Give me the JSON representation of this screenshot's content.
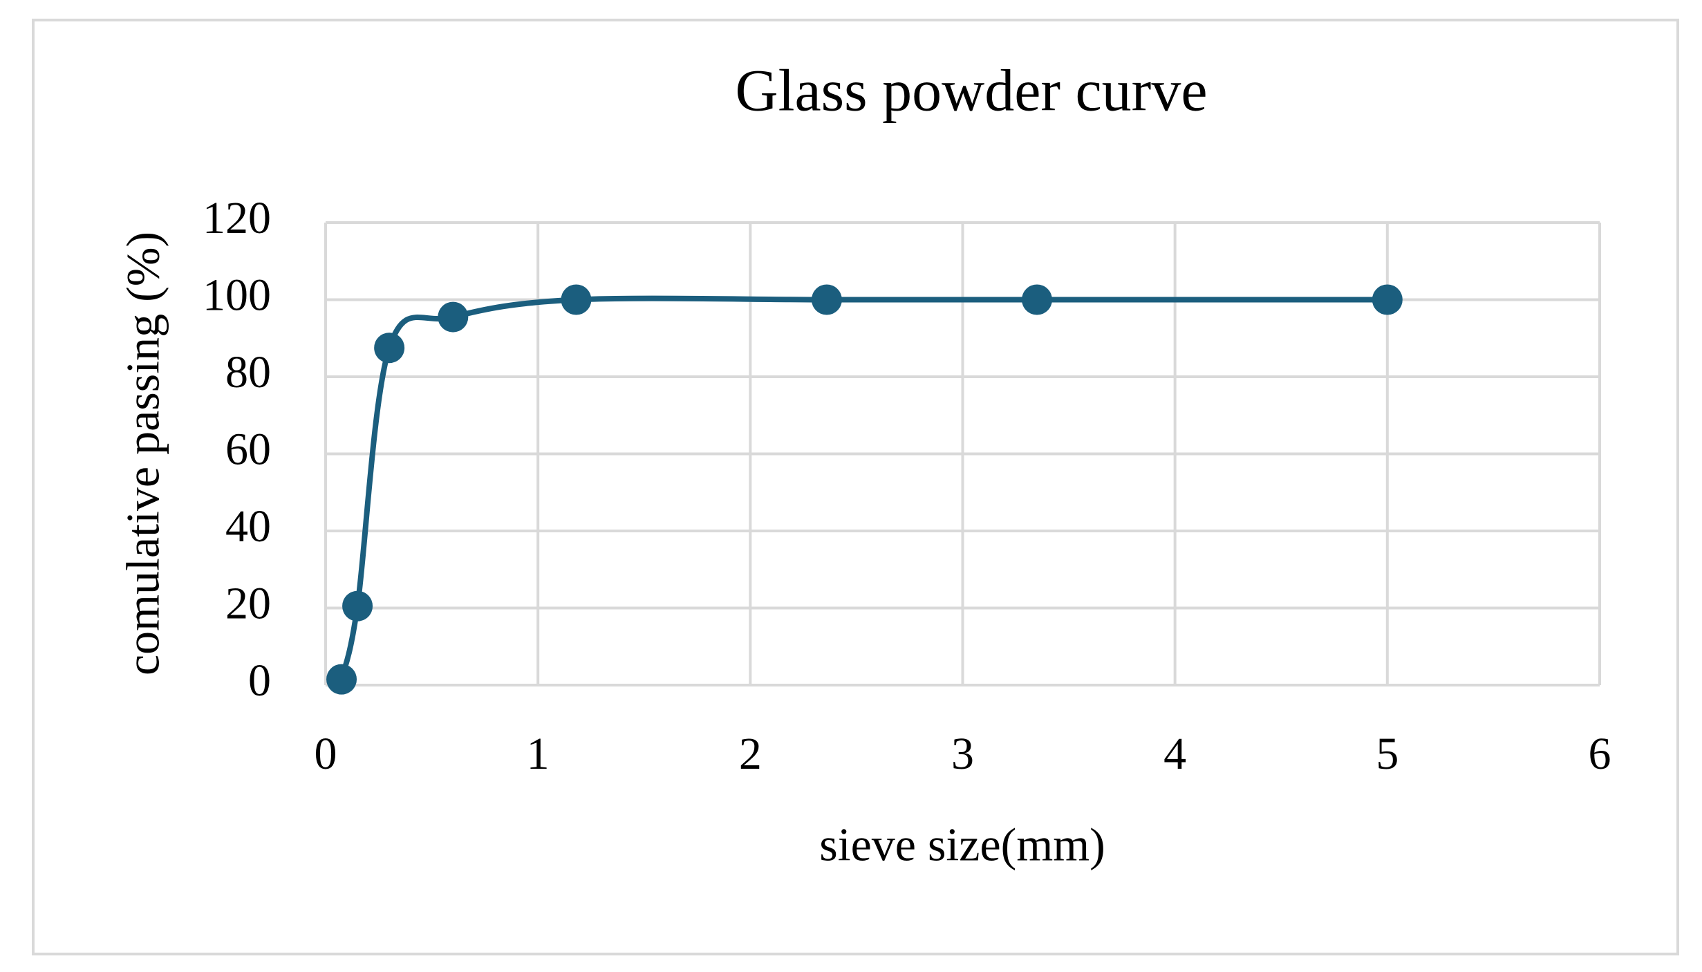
{
  "chart_data": {
    "type": "line",
    "title": "Glass powder curve",
    "x_label": "sieve size(mm)",
    "y_label": "comulative passing (%)",
    "series": [
      {
        "name": "Glass powder",
        "color": "#1b5e7e",
        "x": [
          0.075,
          0.15,
          0.3,
          0.6,
          1.18,
          2.36,
          3.35,
          5
        ],
        "values": [
          1.5,
          20.5,
          87.5,
          95.5,
          100,
          100,
          100,
          100
        ]
      }
    ],
    "xlim": [
      0,
      6
    ],
    "xticks": [
      0,
      1,
      2,
      3,
      4,
      5,
      6
    ],
    "ylim": [
      0,
      120
    ],
    "yticks": [
      0,
      20,
      40,
      60,
      80,
      100,
      120
    ],
    "grid": true,
    "smooth": true,
    "markers": true
  }
}
